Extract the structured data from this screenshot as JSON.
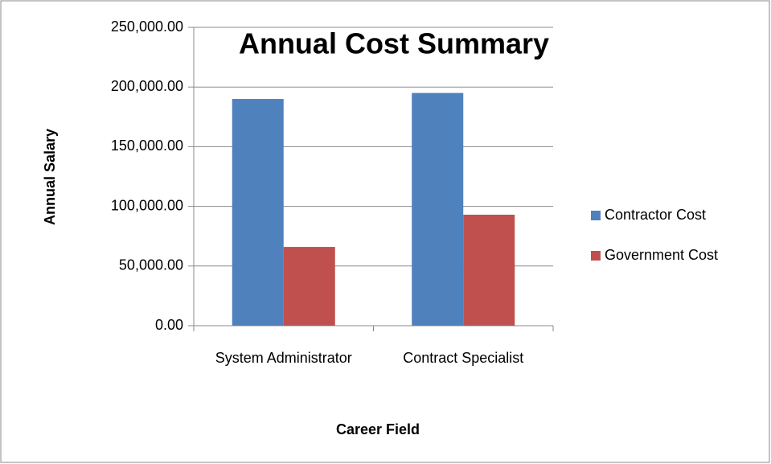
{
  "chart_data": {
    "type": "bar",
    "title": "Annual Cost Summary",
    "x_label": "Career Field",
    "y_label": "Annual Salary",
    "categories": [
      "System Administrator",
      "Contract Specialist"
    ],
    "series": [
      {
        "name": "Contractor Cost",
        "color": "#4f81bd",
        "values": [
          190000,
          195000
        ]
      },
      {
        "name": "Government Cost",
        "color": "#c0504d",
        "values": [
          66000,
          93000
        ]
      }
    ],
    "ylim": [
      0,
      250000
    ],
    "yticks": [
      {
        "value": 0,
        "label": "0.00"
      },
      {
        "value": 50000,
        "label": "50,000.00"
      },
      {
        "value": 100000,
        "label": "100,000.00"
      },
      {
        "value": 150000,
        "label": "150,000.00"
      },
      {
        "value": 200000,
        "label": "200,000.00"
      },
      {
        "value": 250000,
        "label": "250,000.00"
      }
    ],
    "grid": true,
    "legend": "right"
  }
}
